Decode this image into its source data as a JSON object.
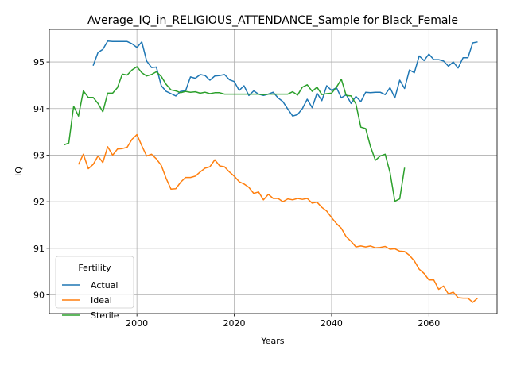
{
  "chart_data": {
    "type": "line",
    "title": "Average_IQ_in_RELIGIOUS_ATTENDANCE_Sample for Black_Female",
    "xlabel": "Years",
    "ylabel": "IQ",
    "xlim": [
      1982,
      2074
    ],
    "ylim": [
      89.6,
      95.7
    ],
    "xticks": [
      2000,
      2020,
      2040,
      2060
    ],
    "yticks": [
      90,
      91,
      92,
      93,
      94,
      95
    ],
    "grid": true,
    "legend": {
      "title": "Fertility",
      "position": "lower-left"
    },
    "series": [
      {
        "name": "Actual",
        "color": "#1f77b4",
        "points": [
          [
            1991,
            94.92
          ],
          [
            1992,
            95.2
          ],
          [
            1993,
            95.27
          ],
          [
            1994,
            95.45
          ],
          [
            1995,
            95.44
          ],
          [
            1996,
            95.44
          ],
          [
            1997,
            95.44
          ],
          [
            1998,
            95.44
          ],
          [
            1999,
            95.39
          ],
          [
            2000,
            95.31
          ],
          [
            2001,
            95.43
          ],
          [
            2002,
            95.02
          ],
          [
            2003,
            94.88
          ],
          [
            2004,
            94.89
          ],
          [
            2005,
            94.49
          ],
          [
            2006,
            94.37
          ],
          [
            2007,
            94.32
          ],
          [
            2008,
            94.27
          ],
          [
            2009,
            94.37
          ],
          [
            2010,
            94.38
          ],
          [
            2011,
            94.68
          ],
          [
            2012,
            94.65
          ],
          [
            2013,
            94.73
          ],
          [
            2014,
            94.71
          ],
          [
            2015,
            94.61
          ],
          [
            2016,
            94.7
          ],
          [
            2017,
            94.71
          ],
          [
            2018,
            94.73
          ],
          [
            2019,
            94.62
          ],
          [
            2020,
            94.58
          ],
          [
            2021,
            94.39
          ],
          [
            2022,
            94.49
          ],
          [
            2023,
            94.28
          ],
          [
            2024,
            94.38
          ],
          [
            2025,
            94.31
          ],
          [
            2026,
            94.28
          ],
          [
            2027,
            94.31
          ],
          [
            2028,
            94.35
          ],
          [
            2029,
            94.23
          ],
          [
            2030,
            94.15
          ],
          [
            2031,
            93.99
          ],
          [
            2032,
            93.84
          ],
          [
            2033,
            93.87
          ],
          [
            2034,
            94.0
          ],
          [
            2035,
            94.2
          ],
          [
            2036,
            94.02
          ],
          [
            2037,
            94.33
          ],
          [
            2038,
            94.17
          ],
          [
            2039,
            94.49
          ],
          [
            2040,
            94.39
          ],
          [
            2041,
            94.45
          ],
          [
            2042,
            94.23
          ],
          [
            2043,
            94.3
          ],
          [
            2044,
            94.11
          ],
          [
            2045,
            94.26
          ],
          [
            2046,
            94.15
          ],
          [
            2047,
            94.35
          ],
          [
            2048,
            94.34
          ],
          [
            2049,
            94.35
          ],
          [
            2050,
            94.35
          ],
          [
            2051,
            94.3
          ],
          [
            2052,
            94.45
          ],
          [
            2053,
            94.23
          ],
          [
            2054,
            94.61
          ],
          [
            2055,
            94.43
          ],
          [
            2056,
            94.83
          ],
          [
            2057,
            94.77
          ],
          [
            2058,
            95.13
          ],
          [
            2059,
            95.03
          ],
          [
            2060,
            95.17
          ],
          [
            2061,
            95.05
          ],
          [
            2062,
            95.05
          ],
          [
            2063,
            95.02
          ],
          [
            2064,
            94.91
          ],
          [
            2065,
            95.0
          ],
          [
            2066,
            94.87
          ],
          [
            2067,
            95.09
          ],
          [
            2068,
            95.09
          ],
          [
            2069,
            95.41
          ],
          [
            2070,
            95.43
          ]
        ]
      },
      {
        "name": "Ideal",
        "color": "#ff7f0e",
        "points": [
          [
            1988,
            92.8
          ],
          [
            1989,
            93.02
          ],
          [
            1990,
            92.71
          ],
          [
            1991,
            92.8
          ],
          [
            1992,
            92.98
          ],
          [
            1993,
            92.84
          ],
          [
            1994,
            93.18
          ],
          [
            1995,
            93.0
          ],
          [
            1996,
            93.13
          ],
          [
            1997,
            93.14
          ],
          [
            1998,
            93.17
          ],
          [
            1999,
            93.34
          ],
          [
            2000,
            93.44
          ],
          [
            2001,
            93.2
          ],
          [
            2002,
            92.98
          ],
          [
            2003,
            93.02
          ],
          [
            2004,
            92.92
          ],
          [
            2005,
            92.78
          ],
          [
            2006,
            92.5
          ],
          [
            2007,
            92.27
          ],
          [
            2008,
            92.28
          ],
          [
            2009,
            92.42
          ],
          [
            2010,
            92.52
          ],
          [
            2011,
            92.52
          ],
          [
            2012,
            92.55
          ],
          [
            2013,
            92.64
          ],
          [
            2014,
            92.72
          ],
          [
            2015,
            92.75
          ],
          [
            2016,
            92.9
          ],
          [
            2017,
            92.77
          ],
          [
            2018,
            92.75
          ],
          [
            2019,
            92.64
          ],
          [
            2020,
            92.55
          ],
          [
            2021,
            92.43
          ],
          [
            2022,
            92.38
          ],
          [
            2023,
            92.31
          ],
          [
            2024,
            92.18
          ],
          [
            2025,
            92.21
          ],
          [
            2026,
            92.04
          ],
          [
            2027,
            92.16
          ],
          [
            2028,
            92.07
          ],
          [
            2029,
            92.07
          ],
          [
            2030,
            92.0
          ],
          [
            2031,
            92.06
          ],
          [
            2032,
            92.04
          ],
          [
            2033,
            92.07
          ],
          [
            2034,
            92.05
          ],
          [
            2035,
            92.07
          ],
          [
            2036,
            91.97
          ],
          [
            2037,
            91.99
          ],
          [
            2038,
            91.88
          ],
          [
            2039,
            91.8
          ],
          [
            2040,
            91.66
          ],
          [
            2041,
            91.53
          ],
          [
            2042,
            91.43
          ],
          [
            2043,
            91.25
          ],
          [
            2044,
            91.15
          ],
          [
            2045,
            91.03
          ],
          [
            2046,
            91.05
          ],
          [
            2047,
            91.03
          ],
          [
            2048,
            91.05
          ],
          [
            2049,
            91.01
          ],
          [
            2050,
            91.02
          ],
          [
            2051,
            91.04
          ],
          [
            2052,
            90.98
          ],
          [
            2053,
            90.99
          ],
          [
            2054,
            90.94
          ],
          [
            2055,
            90.93
          ],
          [
            2056,
            90.85
          ],
          [
            2057,
            90.73
          ],
          [
            2058,
            90.55
          ],
          [
            2059,
            90.46
          ],
          [
            2060,
            90.32
          ],
          [
            2061,
            90.32
          ],
          [
            2062,
            90.12
          ],
          [
            2063,
            90.19
          ],
          [
            2064,
            90.02
          ],
          [
            2065,
            90.06
          ],
          [
            2066,
            89.94
          ],
          [
            2067,
            89.93
          ],
          [
            2068,
            89.93
          ],
          [
            2069,
            89.84
          ],
          [
            2070,
            89.93
          ]
        ]
      },
      {
        "name": "Sterile",
        "color": "#2ca02c",
        "points": [
          [
            1985,
            93.22
          ],
          [
            1986,
            93.26
          ],
          [
            1987,
            94.05
          ],
          [
            1988,
            93.84
          ],
          [
            1989,
            94.38
          ],
          [
            1990,
            94.24
          ],
          [
            1991,
            94.24
          ],
          [
            1992,
            94.11
          ],
          [
            1993,
            93.93
          ],
          [
            1994,
            94.33
          ],
          [
            1995,
            94.33
          ],
          [
            1996,
            94.45
          ],
          [
            1997,
            94.74
          ],
          [
            1998,
            94.72
          ],
          [
            1999,
            94.83
          ],
          [
            2000,
            94.9
          ],
          [
            2001,
            94.77
          ],
          [
            2002,
            94.7
          ],
          [
            2003,
            94.73
          ],
          [
            2004,
            94.79
          ],
          [
            2005,
            94.69
          ],
          [
            2006,
            94.52
          ],
          [
            2007,
            94.4
          ],
          [
            2008,
            94.38
          ],
          [
            2009,
            94.34
          ],
          [
            2010,
            94.37
          ],
          [
            2011,
            94.35
          ],
          [
            2012,
            94.36
          ],
          [
            2013,
            94.33
          ],
          [
            2014,
            94.35
          ],
          [
            2015,
            94.32
          ],
          [
            2016,
            94.34
          ],
          [
            2017,
            94.34
          ],
          [
            2018,
            94.31
          ],
          [
            2019,
            94.31
          ],
          [
            2020,
            94.31
          ],
          [
            2021,
            94.31
          ],
          [
            2022,
            94.31
          ],
          [
            2023,
            94.31
          ],
          [
            2024,
            94.31
          ],
          [
            2025,
            94.31
          ],
          [
            2026,
            94.3
          ],
          [
            2027,
            94.31
          ],
          [
            2028,
            94.31
          ],
          [
            2029,
            94.31
          ],
          [
            2030,
            94.31
          ],
          [
            2031,
            94.31
          ],
          [
            2032,
            94.36
          ],
          [
            2033,
            94.29
          ],
          [
            2034,
            94.46
          ],
          [
            2035,
            94.51
          ],
          [
            2036,
            94.37
          ],
          [
            2037,
            94.46
          ],
          [
            2038,
            94.3
          ],
          [
            2039,
            94.32
          ],
          [
            2040,
            94.33
          ],
          [
            2041,
            94.46
          ],
          [
            2042,
            94.63
          ],
          [
            2043,
            94.28
          ],
          [
            2044,
            94.27
          ],
          [
            2045,
            94.1
          ],
          [
            2046,
            93.6
          ],
          [
            2047,
            93.57
          ],
          [
            2048,
            93.18
          ],
          [
            2049,
            92.89
          ],
          [
            2050,
            92.98
          ],
          [
            2051,
            93.02
          ],
          [
            2052,
            92.63
          ],
          [
            2053,
            92.01
          ],
          [
            2054,
            92.06
          ],
          [
            2055,
            92.73
          ]
        ]
      }
    ]
  }
}
